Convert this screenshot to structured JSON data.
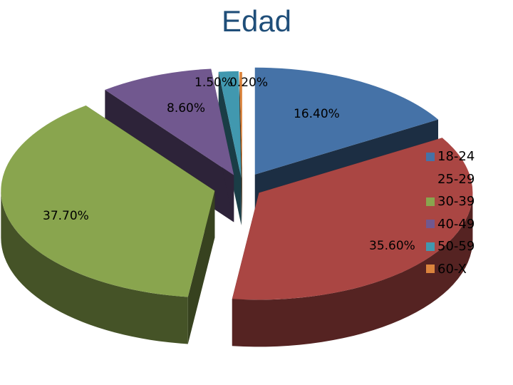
{
  "chart_data": {
    "type": "pie",
    "title": "Edad",
    "categories": [
      "18-24",
      "25-29",
      "30-39",
      "40-49",
      "50-59",
      "60-X"
    ],
    "values": [
      16.4,
      35.6,
      37.7,
      8.6,
      1.5,
      0.2
    ],
    "labels": [
      "16.40%",
      "35.60%",
      "37.70%",
      "8.60%",
      "1.50%",
      "0.20%"
    ],
    "colors": [
      "#4572a7",
      "#aa4643",
      "#89a54e",
      "#71588f",
      "#4198af",
      "#db843d"
    ],
    "legend_position": "right",
    "exploded": true,
    "three_d": true
  }
}
